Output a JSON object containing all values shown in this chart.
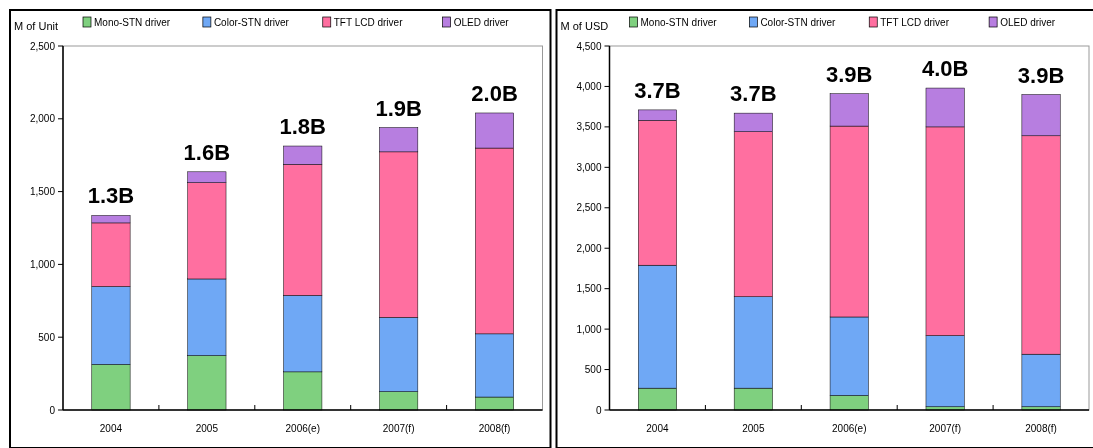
{
  "chart_data": [
    {
      "type": "bar",
      "stacked": true,
      "ylabel": "M of Unit",
      "categories": [
        "2004",
        "2005",
        "2006(e)",
        "2007(f)",
        "2008(f)"
      ],
      "series": [
        {
          "name": "Mono-STN driver",
          "color": "#7fd07f",
          "values": [
            313,
            374,
            262,
            126,
            89
          ]
        },
        {
          "name": "Color-STN driver",
          "color": "#6fa8f5",
          "values": [
            535,
            526,
            525,
            510,
            434
          ]
        },
        {
          "name": "TFT LCD driver",
          "color": "#ff6fa0",
          "values": [
            437,
            661,
            900,
            1137,
            1276
          ]
        },
        {
          "name": "OLED driver",
          "color": "#b77ee0",
          "values": [
            51,
            75,
            126,
            167,
            241
          ]
        }
      ],
      "totals": [
        "1.3B",
        "1.6B",
        "1.8B",
        "1.9B",
        "2.0B"
      ],
      "ylim": [
        0,
        2500
      ],
      "yticks": [
        {
          "value": 0,
          "label": "0"
        },
        {
          "value": 500,
          "label": "500"
        },
        {
          "value": 1000,
          "label": "1,000"
        },
        {
          "value": 1500,
          "label": "1,500"
        },
        {
          "value": 2000,
          "label": "2,000"
        },
        {
          "value": 2500,
          "label": "2,500"
        }
      ],
      "grid": false,
      "legend": "top"
    },
    {
      "type": "bar",
      "stacked": true,
      "ylabel": "M of USD",
      "categories": [
        "2004",
        "2005",
        "2006(e)",
        "2007(f)",
        "2008(f)"
      ],
      "series": [
        {
          "name": "Mono-STN driver",
          "color": "#7fd07f",
          "values": [
            270,
            270,
            180,
            40,
            40
          ]
        },
        {
          "name": "Color-STN driver",
          "color": "#6fa8f5",
          "values": [
            1520,
            1130,
            970,
            880,
            650
          ]
        },
        {
          "name": "TFT LCD driver",
          "color": "#ff6fa0",
          "values": [
            1790,
            2040,
            2360,
            2580,
            2700
          ]
        },
        {
          "name": "OLED driver",
          "color": "#b77ee0",
          "values": [
            130,
            230,
            400,
            480,
            510
          ]
        }
      ],
      "totals": [
        "3.7B",
        "3.7B",
        "3.9B",
        "4.0B",
        "3.9B"
      ],
      "ylim": [
        0,
        4500
      ],
      "yticks": [
        {
          "value": 0,
          "label": "0"
        },
        {
          "value": 500,
          "label": "500"
        },
        {
          "value": 1000,
          "label": "1,000"
        },
        {
          "value": 1500,
          "label": "1,500"
        },
        {
          "value": 2000,
          "label": "2,000"
        },
        {
          "value": 2500,
          "label": "2,500"
        },
        {
          "value": 3000,
          "label": "3,000"
        },
        {
          "value": 3500,
          "label": "3,500"
        },
        {
          "value": 4000,
          "label": "4,000"
        },
        {
          "value": 4500,
          "label": "4,500"
        }
      ],
      "grid": false,
      "legend": "top"
    }
  ]
}
